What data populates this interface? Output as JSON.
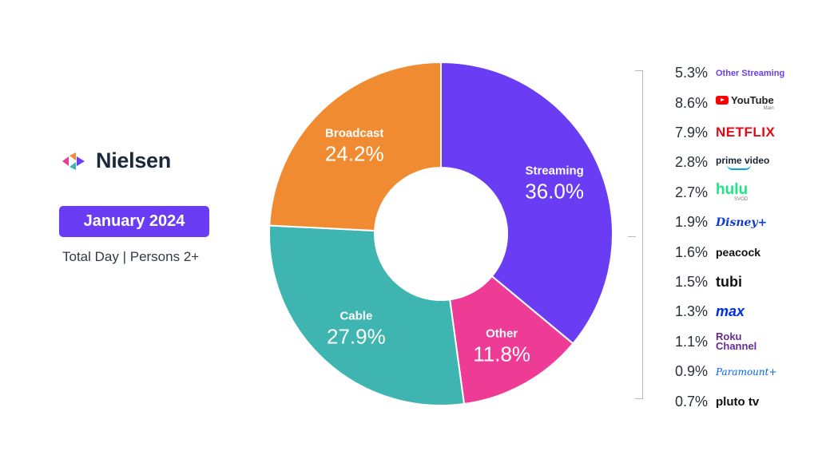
{
  "brand": {
    "name": "Nielsen",
    "icon": "nielsen-logo-icon"
  },
  "badge": {
    "label": "January 2024",
    "color": "#6a3df5"
  },
  "subtitle": "Total Day | Persons 2+",
  "chart_data": {
    "type": "pie",
    "donut": true,
    "slices": [
      {
        "label": "Streaming",
        "value": 36.0,
        "display": "36.0%",
        "color": "#6a3df5"
      },
      {
        "label": "Other",
        "value": 11.8,
        "display": "11.8%",
        "color": "#ee3c96"
      },
      {
        "label": "Cable",
        "value": 27.9,
        "display": "27.9%",
        "color": "#3fb5b1"
      },
      {
        "label": "Broadcast",
        "value": 24.2,
        "display": "24.2%",
        "color": "#f18b31"
      }
    ],
    "streaming_breakdown": [
      {
        "name": "Other Streaming",
        "value": 5.3,
        "display": "5.3%"
      },
      {
        "name": "YouTube",
        "value": 8.6,
        "display": "8.6%",
        "note": "Main"
      },
      {
        "name": "NETFLIX",
        "value": 7.9,
        "display": "7.9%"
      },
      {
        "name": "prime video",
        "value": 2.8,
        "display": "2.8%"
      },
      {
        "name": "hulu",
        "value": 2.7,
        "display": "2.7%",
        "note": "SVOD"
      },
      {
        "name": "Disney+",
        "value": 1.9,
        "display": "1.9%"
      },
      {
        "name": "peacock",
        "value": 1.6,
        "display": "1.6%"
      },
      {
        "name": "tubi",
        "value": 1.5,
        "display": "1.5%"
      },
      {
        "name": "max",
        "value": 1.3,
        "display": "1.3%"
      },
      {
        "name": "Roku Channel",
        "value": 1.1,
        "display": "1.1%"
      },
      {
        "name": "Paramount+",
        "value": 0.9,
        "display": "0.9%"
      },
      {
        "name": "pluto tv",
        "value": 0.7,
        "display": "0.7%"
      }
    ]
  }
}
